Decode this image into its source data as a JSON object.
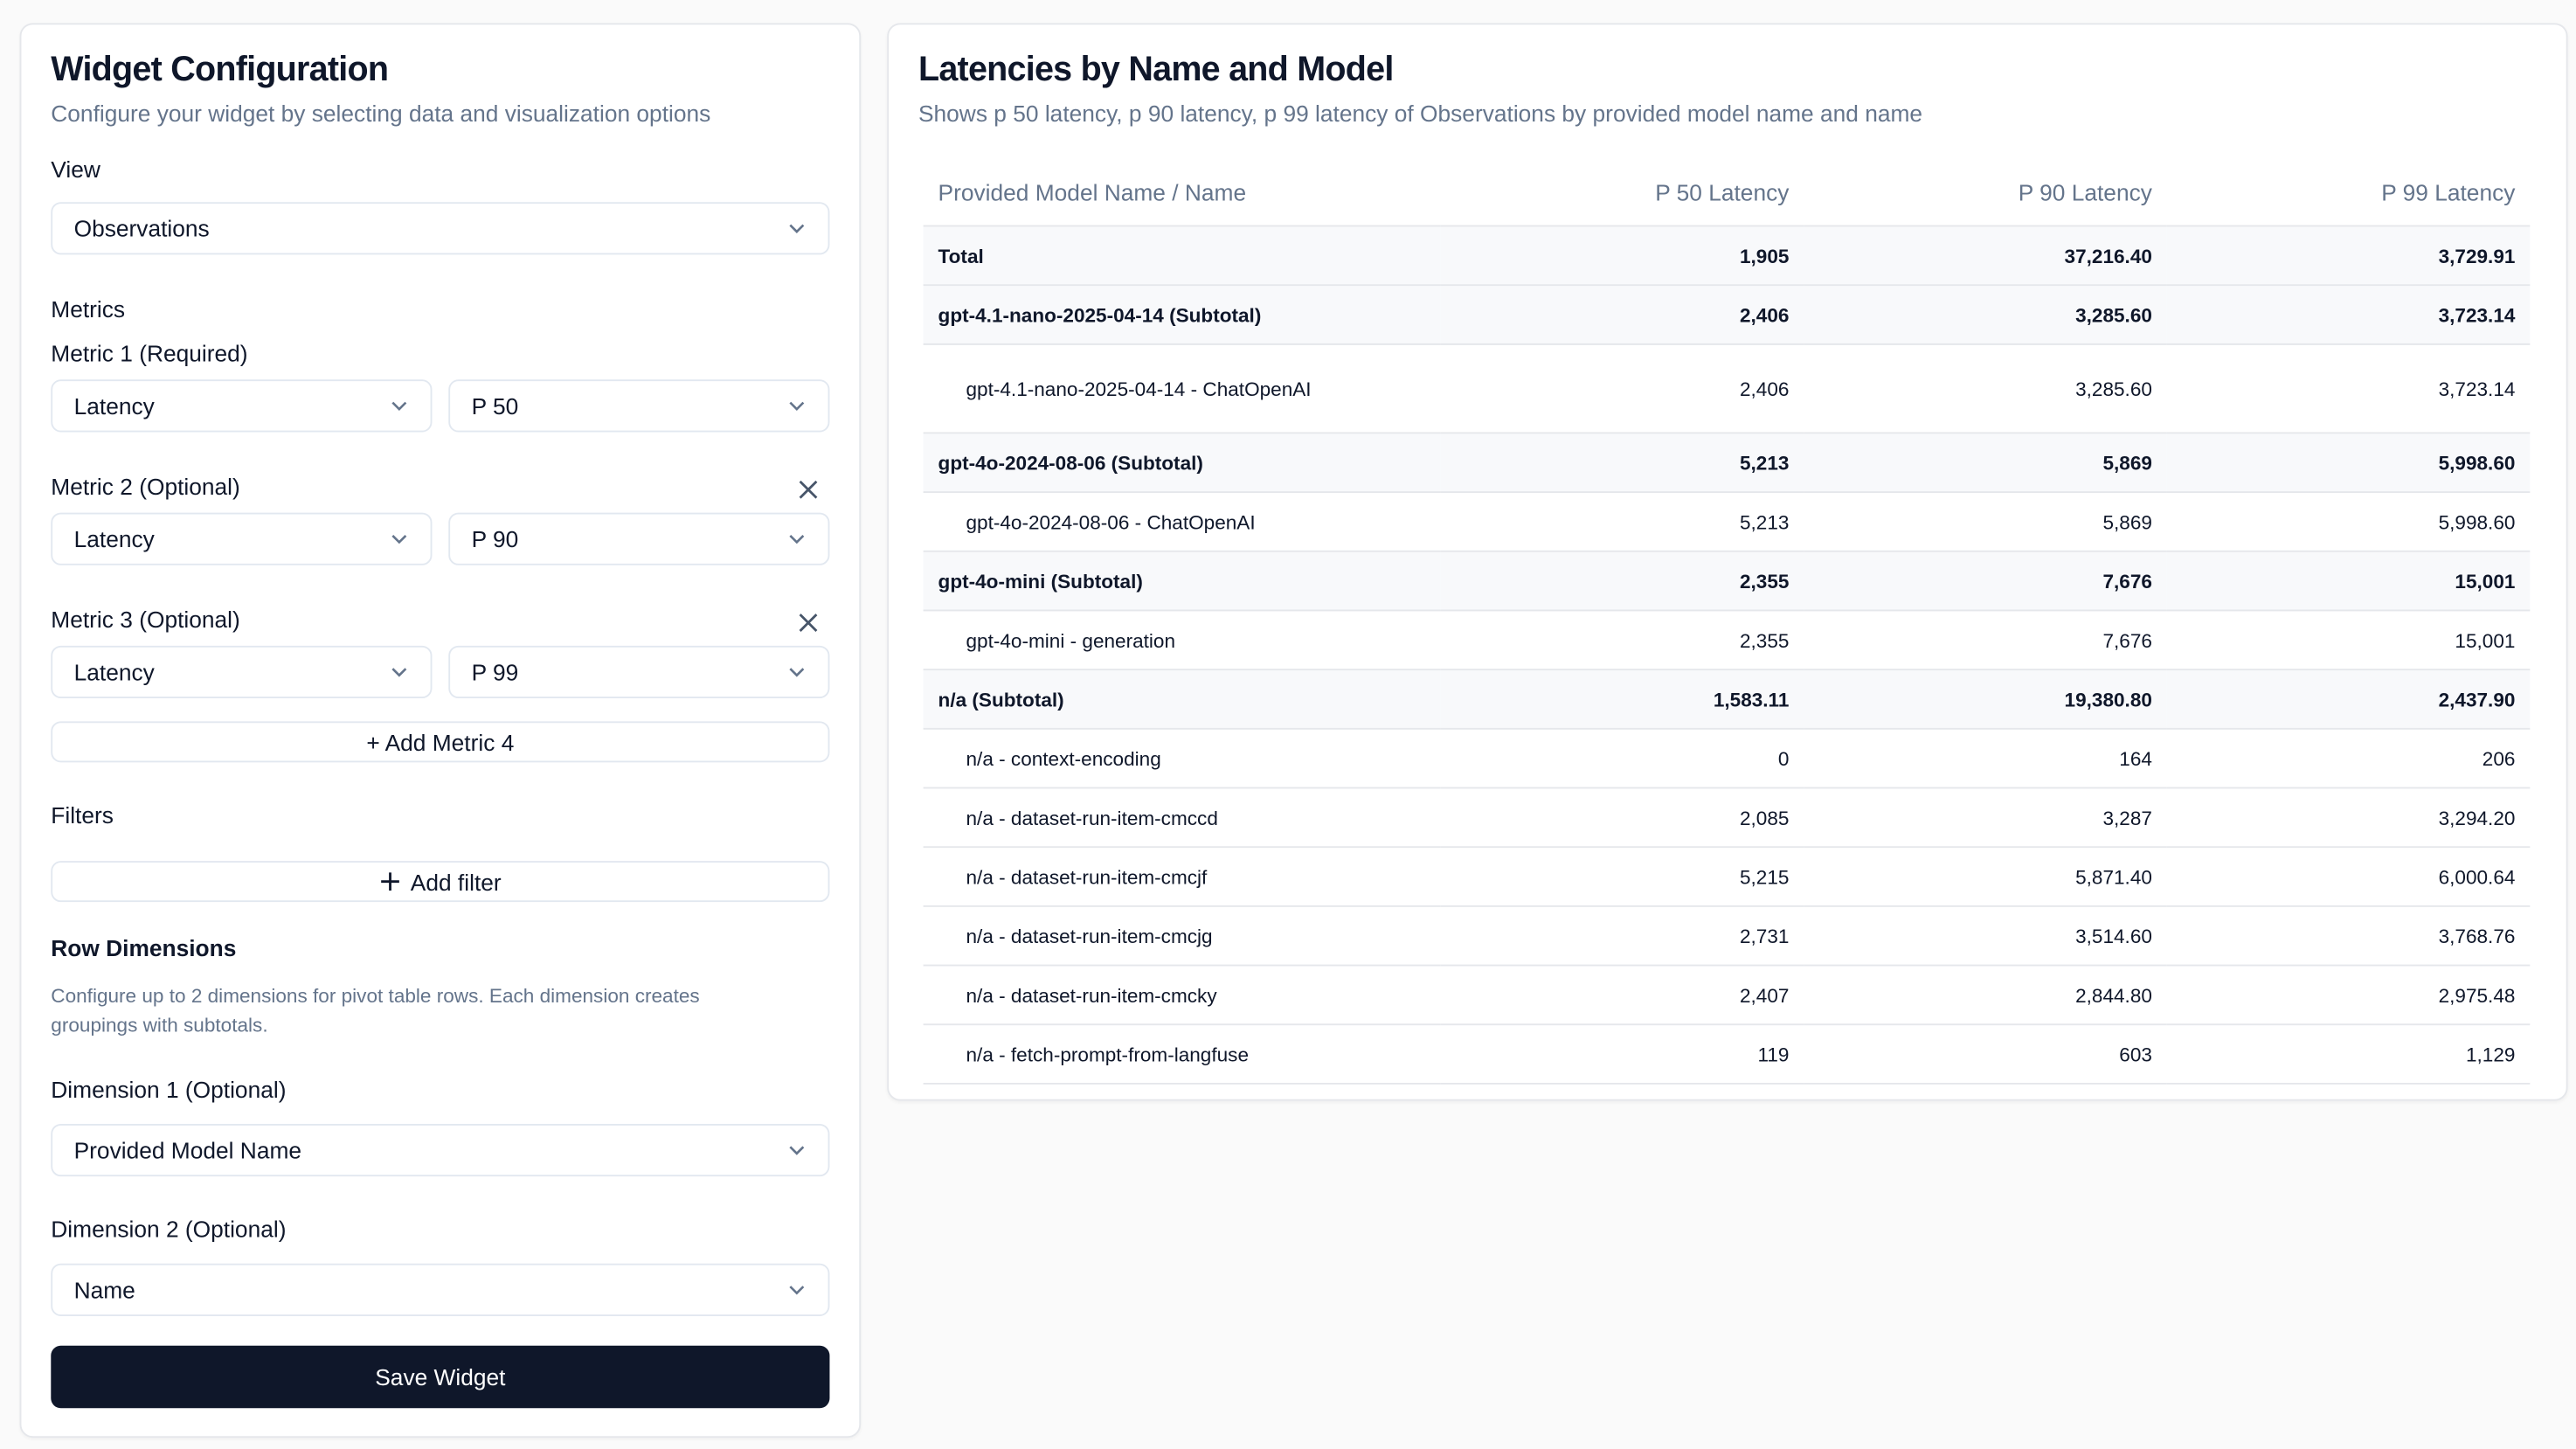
{
  "config": {
    "title": "Widget Configuration",
    "subtitle": "Configure your widget by selecting data and visualization options",
    "view_label": "View",
    "view_value": "Observations",
    "metrics_label": "Metrics",
    "metrics": [
      {
        "label": "Metric 1 (Required)",
        "measure": "Latency",
        "aggregation": "P 50",
        "removable": false
      },
      {
        "label": "Metric 2 (Optional)",
        "measure": "Latency",
        "aggregation": "P 90",
        "removable": true
      },
      {
        "label": "Metric 3 (Optional)",
        "measure": "Latency",
        "aggregation": "P 99",
        "removable": true
      }
    ],
    "add_metric_label": "+ Add Metric 4",
    "filters_label": "Filters",
    "add_filter_label": "Add filter",
    "row_dimensions_label": "Row Dimensions",
    "row_dimensions_desc": "Configure up to 2 dimensions for pivot table rows. Each dimension creates groupings with subtotals.",
    "dimension1_label": "Dimension 1 (Optional)",
    "dimension1_value": "Provided Model Name",
    "dimension2_label": "Dimension 2 (Optional)",
    "dimension2_value": "Name",
    "save_label": "Save Widget",
    "save_color": "#0f172a"
  },
  "preview": {
    "title": "Latencies by Name and Model",
    "subtitle": "Shows p 50 latency, p 90 latency, p 99 latency of Observations by provided model name and name",
    "columns": [
      "Provided Model Name / Name",
      "P 50 Latency",
      "P 90 Latency",
      "P 99 Latency"
    ],
    "rows": [
      {
        "type": "total",
        "cells": [
          "Total",
          "1,905",
          "37,216.40",
          "3,729.91"
        ]
      },
      {
        "type": "subtotal",
        "cells": [
          "gpt-4.1-nano-2025-04-14 (Subtotal)",
          "2,406",
          "3,285.60",
          "3,723.14"
        ]
      },
      {
        "type": "child",
        "cells": [
          "gpt-4.1-nano-2025-04-14 - ChatOpenAI",
          "2,406",
          "3,285.60",
          "3,723.14"
        ]
      },
      {
        "type": "subtotal",
        "cells": [
          "gpt-4o-2024-08-06 (Subtotal)",
          "5,213",
          "5,869",
          "5,998.60"
        ]
      },
      {
        "type": "child",
        "cells": [
          "gpt-4o-2024-08-06 - ChatOpenAI",
          "5,213",
          "5,869",
          "5,998.60"
        ]
      },
      {
        "type": "subtotal",
        "cells": [
          "gpt-4o-mini (Subtotal)",
          "2,355",
          "7,676",
          "15,001"
        ]
      },
      {
        "type": "child",
        "cells": [
          "gpt-4o-mini - generation",
          "2,355",
          "7,676",
          "15,001"
        ]
      },
      {
        "type": "subtotal",
        "cells": [
          "n/a (Subtotal)",
          "1,583.11",
          "19,380.80",
          "2,437.90"
        ]
      },
      {
        "type": "child",
        "cells": [
          "n/a - context-encoding",
          "0",
          "164",
          "206"
        ]
      },
      {
        "type": "child",
        "cells": [
          "n/a - dataset-run-item-cmccd",
          "2,085",
          "3,287",
          "3,294.20"
        ]
      },
      {
        "type": "child",
        "cells": [
          "n/a - dataset-run-item-cmcjf",
          "5,215",
          "5,871.40",
          "6,000.64"
        ]
      },
      {
        "type": "child",
        "cells": [
          "n/a - dataset-run-item-cmcjg",
          "2,731",
          "3,514.60",
          "3,768.76"
        ]
      },
      {
        "type": "child",
        "cells": [
          "n/a - dataset-run-item-cmcky",
          "2,407",
          "2,844.80",
          "2,975.48"
        ]
      },
      {
        "type": "child",
        "cells": [
          "n/a - fetch-prompt-from-langfuse",
          "119",
          "603",
          "1,129"
        ]
      }
    ]
  }
}
